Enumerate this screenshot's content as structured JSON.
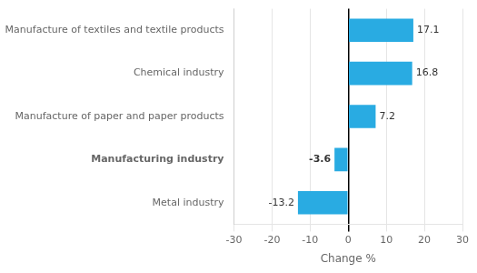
{
  "chart_data": {
    "type": "bar",
    "orientation": "horizontal",
    "categories": [
      "Metal industry",
      "Manufacturing industry",
      "Manufacture of paper and paper products",
      "Chemical industry",
      "Manufacture of textiles and textile products"
    ],
    "values": [
      -13.2,
      -3.6,
      7.2,
      16.8,
      17.1
    ],
    "color": "#29ABE2",
    "xlabel": "Change %",
    "xlim": [
      -30,
      30
    ],
    "xticks": [
      -30,
      -20,
      -10,
      0,
      10,
      20,
      30
    ],
    "grid": true,
    "data_labels": true
  }
}
